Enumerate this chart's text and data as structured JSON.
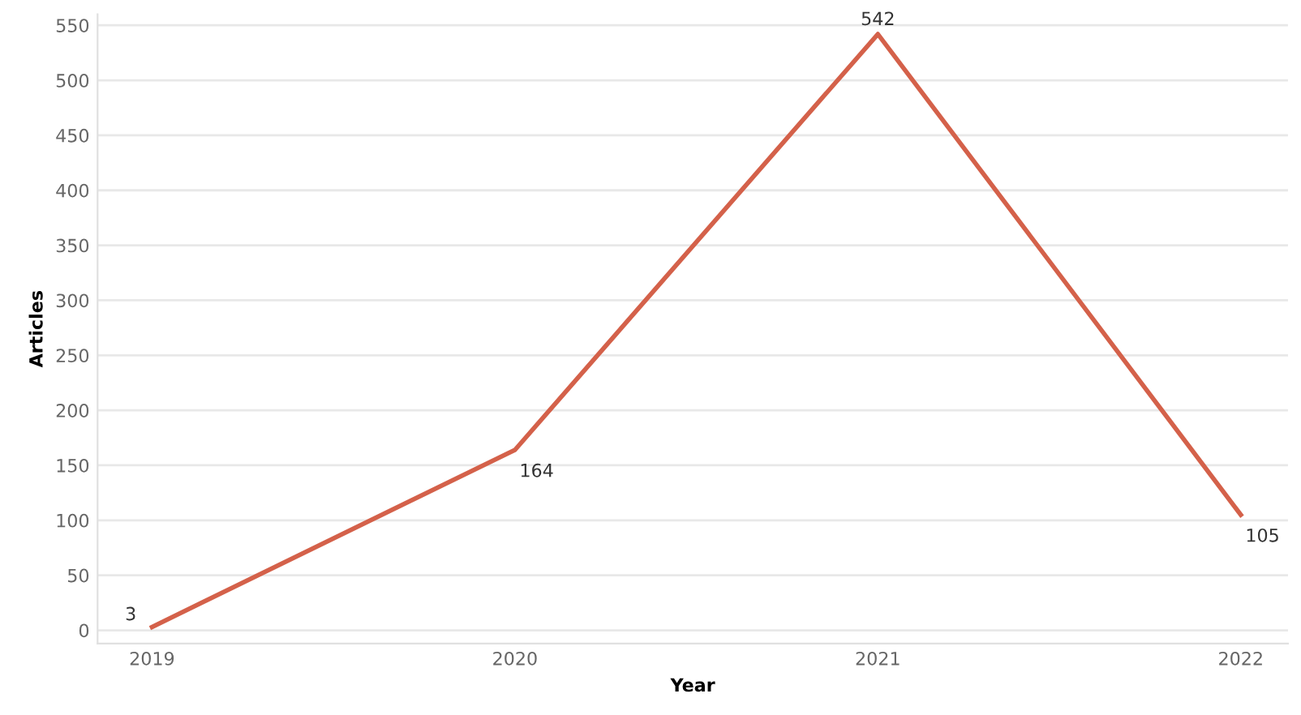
{
  "chart_data": {
    "type": "line",
    "xlabel": "Year",
    "ylabel": "Articles",
    "categories": [
      "2019",
      "2020",
      "2021",
      "2022"
    ],
    "series": [
      {
        "color": "#d4614a",
        "values": [
          3,
          164,
          542,
          105
        ]
      }
    ],
    "ylim": [
      -12,
      560
    ],
    "yticks": [
      0,
      50,
      100,
      150,
      200,
      250,
      300,
      350,
      400,
      450,
      500,
      550
    ],
    "grid": "y",
    "data_labels": true,
    "marker": "none",
    "line_style": "solid"
  }
}
